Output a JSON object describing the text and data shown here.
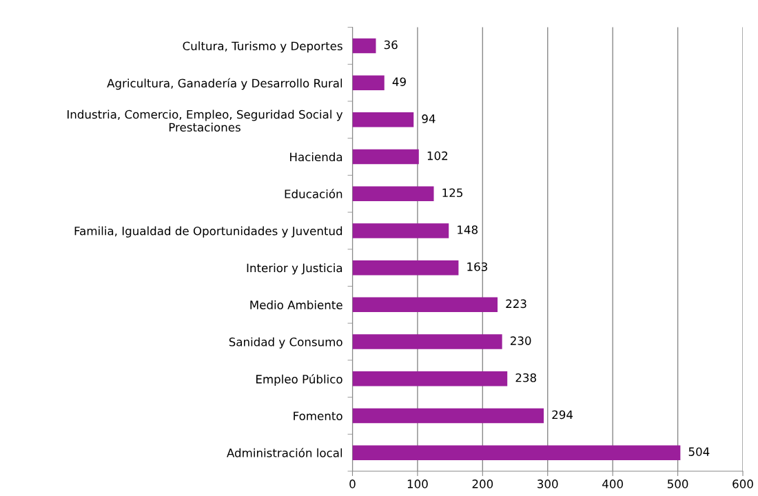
{
  "chart_data": {
    "type": "bar",
    "orientation": "horizontal",
    "categories": [
      "Cultura, Turismo y Deportes",
      "Agricultura, Ganadería y Desarrollo Rural",
      "Industria, Comercio, Empleo, Seguridad Social y\nPrestaciones",
      "Hacienda",
      "Educación",
      "Familia, Igualdad de Oportunidades y Juventud",
      "Interior y Justicia",
      "Medio Ambiente",
      "Sanidad y Consumo",
      "Empleo Público",
      "Fomento",
      "Administración local"
    ],
    "values": [
      36,
      49,
      94,
      102,
      125,
      148,
      163,
      223,
      230,
      238,
      294,
      504
    ],
    "color": "#9b1f9b",
    "xlim": [
      0,
      600
    ],
    "xticks": [
      0,
      100,
      200,
      300,
      400,
      500,
      600
    ],
    "grid": "x",
    "data_labels": true
  }
}
